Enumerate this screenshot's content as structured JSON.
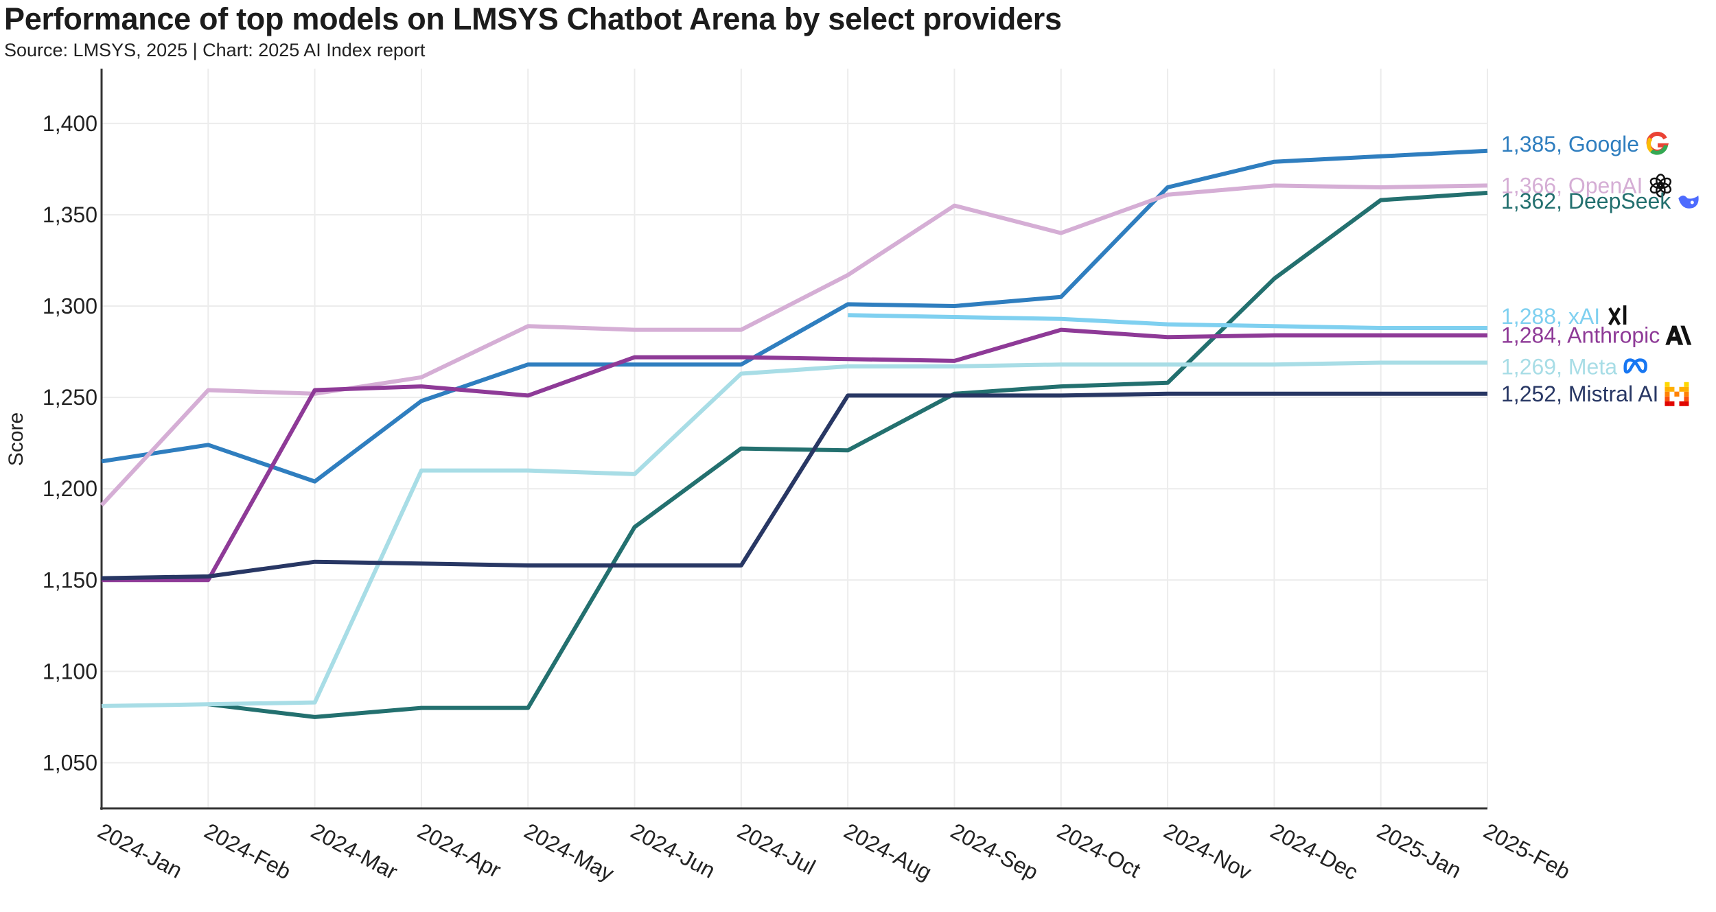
{
  "title": "Performance of top models on LMSYS Chatbot Arena by select providers",
  "subtitle": "Source: LMSYS, 2025 | Chart: 2025 AI Index report",
  "chart_data": {
    "type": "line",
    "title": "Performance of top models on LMSYS Chatbot Arena by select providers",
    "xlabel": "",
    "ylabel": "Score",
    "ylim": [
      1025,
      1430
    ],
    "yticks": [
      1050,
      1100,
      1150,
      1200,
      1250,
      1300,
      1350,
      1400
    ],
    "ytick_labels": [
      "1,050",
      "1,100",
      "1,150",
      "1,200",
      "1,250",
      "1,300",
      "1,350",
      "1,400"
    ],
    "grid": true,
    "categories": [
      "2024-Jan",
      "2024-Feb",
      "2024-Mar",
      "2024-Apr",
      "2024-May",
      "2024-Jun",
      "2024-Jul",
      "2024-Aug",
      "2024-Sep",
      "2024-Oct",
      "2024-Nov",
      "2024-Dec",
      "2025-Jan",
      "2025-Feb"
    ],
    "series": [
      {
        "name": "Google",
        "label": "1,385, Google",
        "color": "#2f7ebf",
        "icon": "google-icon",
        "values": [
          1215,
          1224,
          1204,
          1248,
          1268,
          1268,
          1268,
          1301,
          1300,
          1305,
          1365,
          1379,
          1382,
          1385
        ]
      },
      {
        "name": "OpenAI",
        "label": "1,366, OpenAI",
        "color": "#d5aed5",
        "icon": "openai-icon",
        "values": [
          1191,
          1254,
          1252,
          1261,
          1289,
          1287,
          1287,
          1317,
          1355,
          1340,
          1361,
          1366,
          1365,
          1366
        ]
      },
      {
        "name": "DeepSeek",
        "label": "1,362, DeepSeek",
        "color": "#23706f",
        "icon": "deepseek-icon",
        "values": [
          null,
          1082,
          1075,
          1080,
          1080,
          1179,
          1222,
          1221,
          1252,
          1256,
          1258,
          1315,
          1358,
          1362
        ]
      },
      {
        "name": "xAI",
        "label": "1,288, xAI",
        "color": "#7fd0f0",
        "icon": "xai-icon",
        "values": [
          null,
          null,
          null,
          null,
          null,
          null,
          null,
          1295,
          1294,
          1293,
          1290,
          1289,
          1288,
          1288
        ]
      },
      {
        "name": "Anthropic",
        "label": "1,284, Anthropic",
        "color": "#8e3a97",
        "icon": "anthropic-icon",
        "values": [
          1150,
          1150,
          1254,
          1256,
          1251,
          1272,
          1272,
          1271,
          1270,
          1287,
          1283,
          1284,
          1284,
          1284
        ]
      },
      {
        "name": "Meta",
        "label": "1,269, Meta",
        "color": "#a8dde6",
        "icon": "meta-icon",
        "values": [
          1081,
          1082,
          1083,
          1210,
          1210,
          1208,
          1263,
          1267,
          1267,
          1268,
          1268,
          1268,
          1269,
          1269
        ]
      },
      {
        "name": "Mistral AI",
        "label": "1,252, Mistral AI",
        "color": "#283764",
        "icon": "mistral-icon",
        "values": [
          1151,
          1152,
          1160,
          1159,
          1158,
          1158,
          1158,
          1251,
          1251,
          1251,
          1252,
          1252,
          1252,
          1252
        ]
      }
    ]
  }
}
